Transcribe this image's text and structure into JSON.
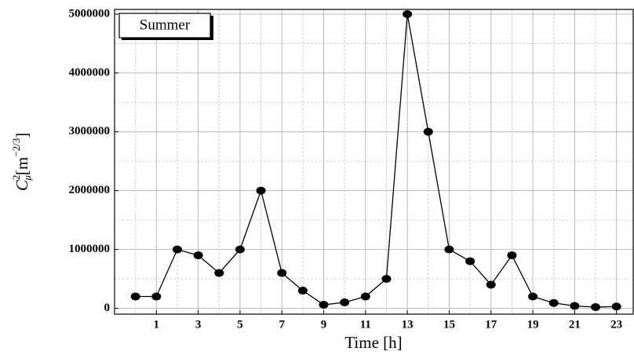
{
  "chart_data": {
    "type": "line",
    "annotation": "Summer",
    "xlabel": "Time [h]",
    "ylabel": {
      "base": "C",
      "sup": "2",
      "sub": "μ",
      "unit": "[m",
      "unit_sup": "−2/3",
      "close": "]"
    },
    "x": [
      0,
      1,
      2,
      3,
      4,
      5,
      6,
      7,
      8,
      9,
      10,
      11,
      12,
      13,
      14,
      15,
      16,
      17,
      18,
      19,
      20,
      21,
      22,
      23
    ],
    "series": [
      {
        "color": "#000000",
        "values": [
          200000,
          200000,
          1000000,
          900000,
          600000,
          1000000,
          2000000,
          600000,
          300000,
          60000,
          100000,
          200000,
          500000,
          5000000,
          3000000,
          1000000,
          800000,
          400000,
          900000,
          200000,
          90000,
          40000,
          20000,
          30000
        ]
      }
    ],
    "xlim": [
      -1,
      23.8
    ],
    "ylim": [
      -100000,
      5080000
    ],
    "xticks": [
      1,
      3,
      5,
      7,
      9,
      11,
      13,
      15,
      17,
      19,
      21,
      23
    ],
    "yticks": [
      0,
      1000000,
      2000000,
      3000000,
      4000000,
      5000000
    ],
    "grid": true
  }
}
